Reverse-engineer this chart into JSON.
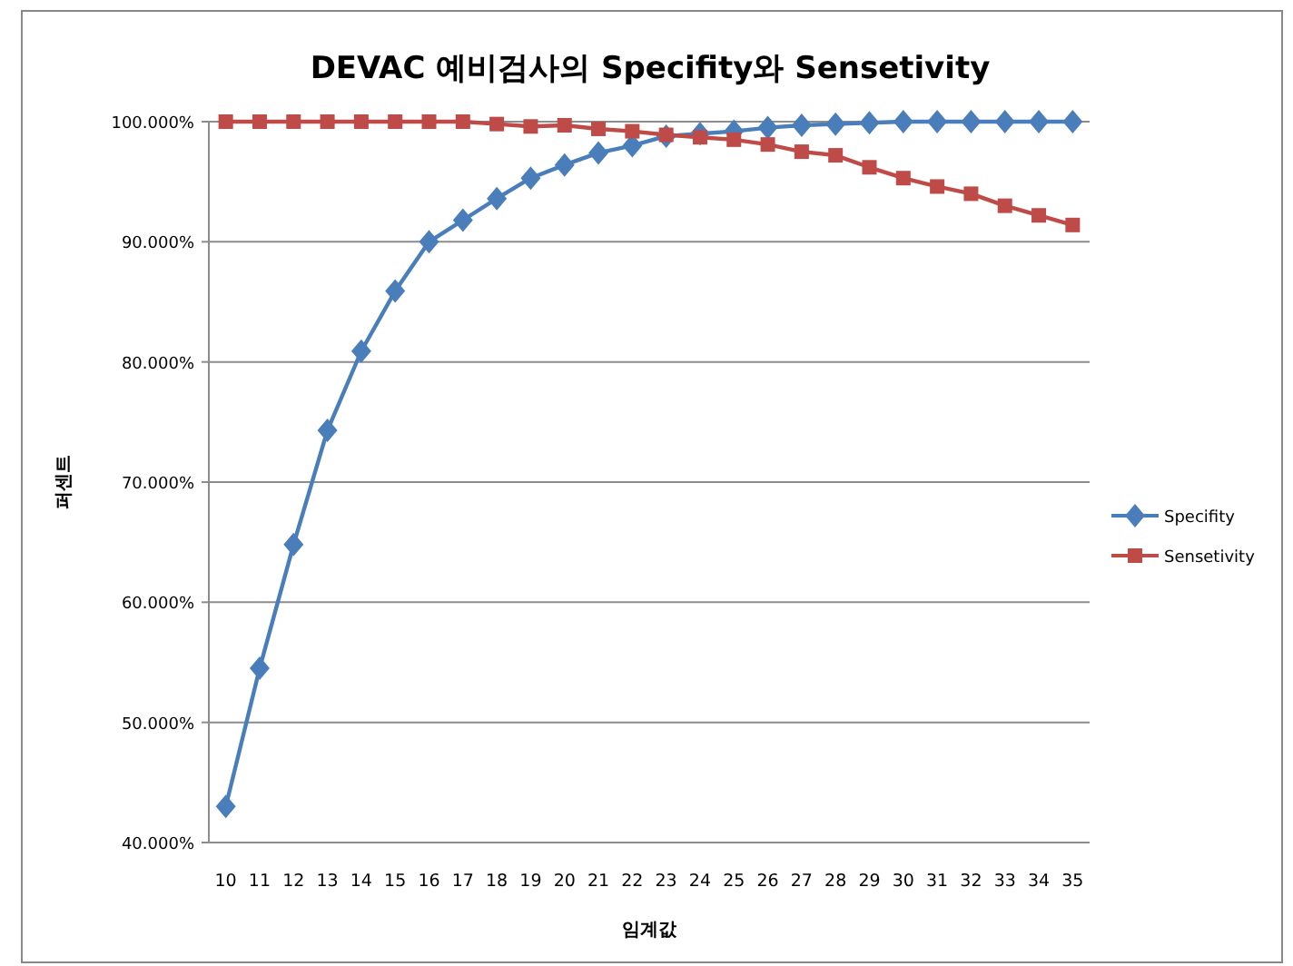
{
  "chart_data": {
    "type": "line",
    "title": "DEVAC 예비검사의 Specifity와 Sensetivity",
    "xlabel": "임계값",
    "ylabel": "퍼센트",
    "categories": [
      "10",
      "11",
      "12",
      "13",
      "14",
      "15",
      "16",
      "17",
      "18",
      "19",
      "20",
      "21",
      "22",
      "23",
      "24",
      "25",
      "26",
      "27",
      "28",
      "29",
      "30",
      "31",
      "32",
      "33",
      "34",
      "35"
    ],
    "series": [
      {
        "name": "Specifity",
        "color": "#4a7ebb",
        "marker": "diamond",
        "values": [
          43.0,
          54.5,
          64.8,
          74.3,
          80.9,
          85.9,
          90.0,
          91.8,
          93.6,
          95.3,
          96.4,
          97.4,
          98.0,
          98.8,
          99.0,
          99.2,
          99.5,
          99.7,
          99.8,
          99.9,
          100,
          100,
          100,
          100,
          100,
          100
        ]
      },
      {
        "name": "Sensetivity",
        "color": "#be4b48",
        "marker": "square",
        "values": [
          100,
          100,
          100,
          100,
          100,
          100,
          100,
          100,
          99.8,
          99.6,
          99.7,
          99.4,
          99.2,
          98.9,
          98.7,
          98.5,
          98.1,
          97.5,
          97.2,
          96.2,
          95.3,
          94.6,
          94.0,
          93.0,
          92.2,
          91.4
        ]
      }
    ],
    "ylim": [
      40,
      100
    ],
    "yticks": [
      {
        "value": 40,
        "label": "40.000%"
      },
      {
        "value": 50,
        "label": "50.000%"
      },
      {
        "value": 60,
        "label": "60.000%"
      },
      {
        "value": 70,
        "label": "70.000%"
      },
      {
        "value": 80,
        "label": "80.000%"
      },
      {
        "value": 90,
        "label": "90.000%"
      },
      {
        "value": 100,
        "label": "100.000%"
      }
    ],
    "grid": "y",
    "legend": "right"
  }
}
